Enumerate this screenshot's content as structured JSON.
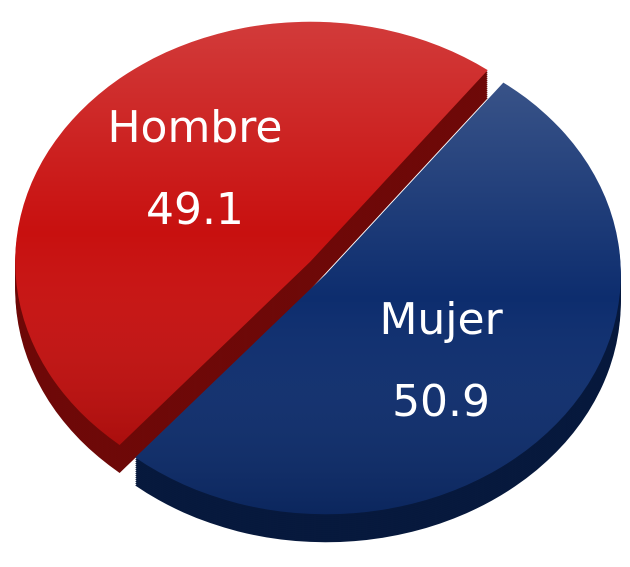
{
  "chart_data": {
    "type": "pie",
    "categories": [
      "Hombre",
      "Mujer"
    ],
    "values": [
      49.1,
      50.9
    ],
    "colors": [
      "#c8100f",
      "#0d2d6e"
    ]
  }
}
